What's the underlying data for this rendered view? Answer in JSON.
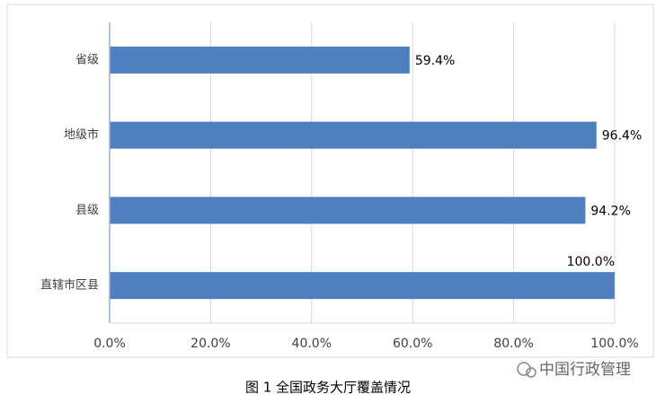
{
  "chart_data": {
    "type": "bar",
    "orientation": "horizontal",
    "categories": [
      "省级",
      "地级市",
      "县级",
      "直辖市区县"
    ],
    "values": [
      59.4,
      96.4,
      94.2,
      100.0
    ],
    "value_labels": [
      "59.4%",
      "96.4%",
      "94.2%",
      "100.0%"
    ],
    "color": "#4f7fbf",
    "xlim": [
      0,
      100
    ],
    "xticks": [
      {
        "value": 0,
        "label": "0.0%"
      },
      {
        "value": 20,
        "label": "20.0%"
      },
      {
        "value": 40,
        "label": "40.0%"
      },
      {
        "value": 60,
        "label": "60.0%"
      },
      {
        "value": 80,
        "label": "80.0%"
      },
      {
        "value": 100,
        "label": "100.0%"
      }
    ],
    "grid": true,
    "caption": "图 1  全国政务大厅覆盖情况",
    "watermark": "中国行政管理"
  }
}
